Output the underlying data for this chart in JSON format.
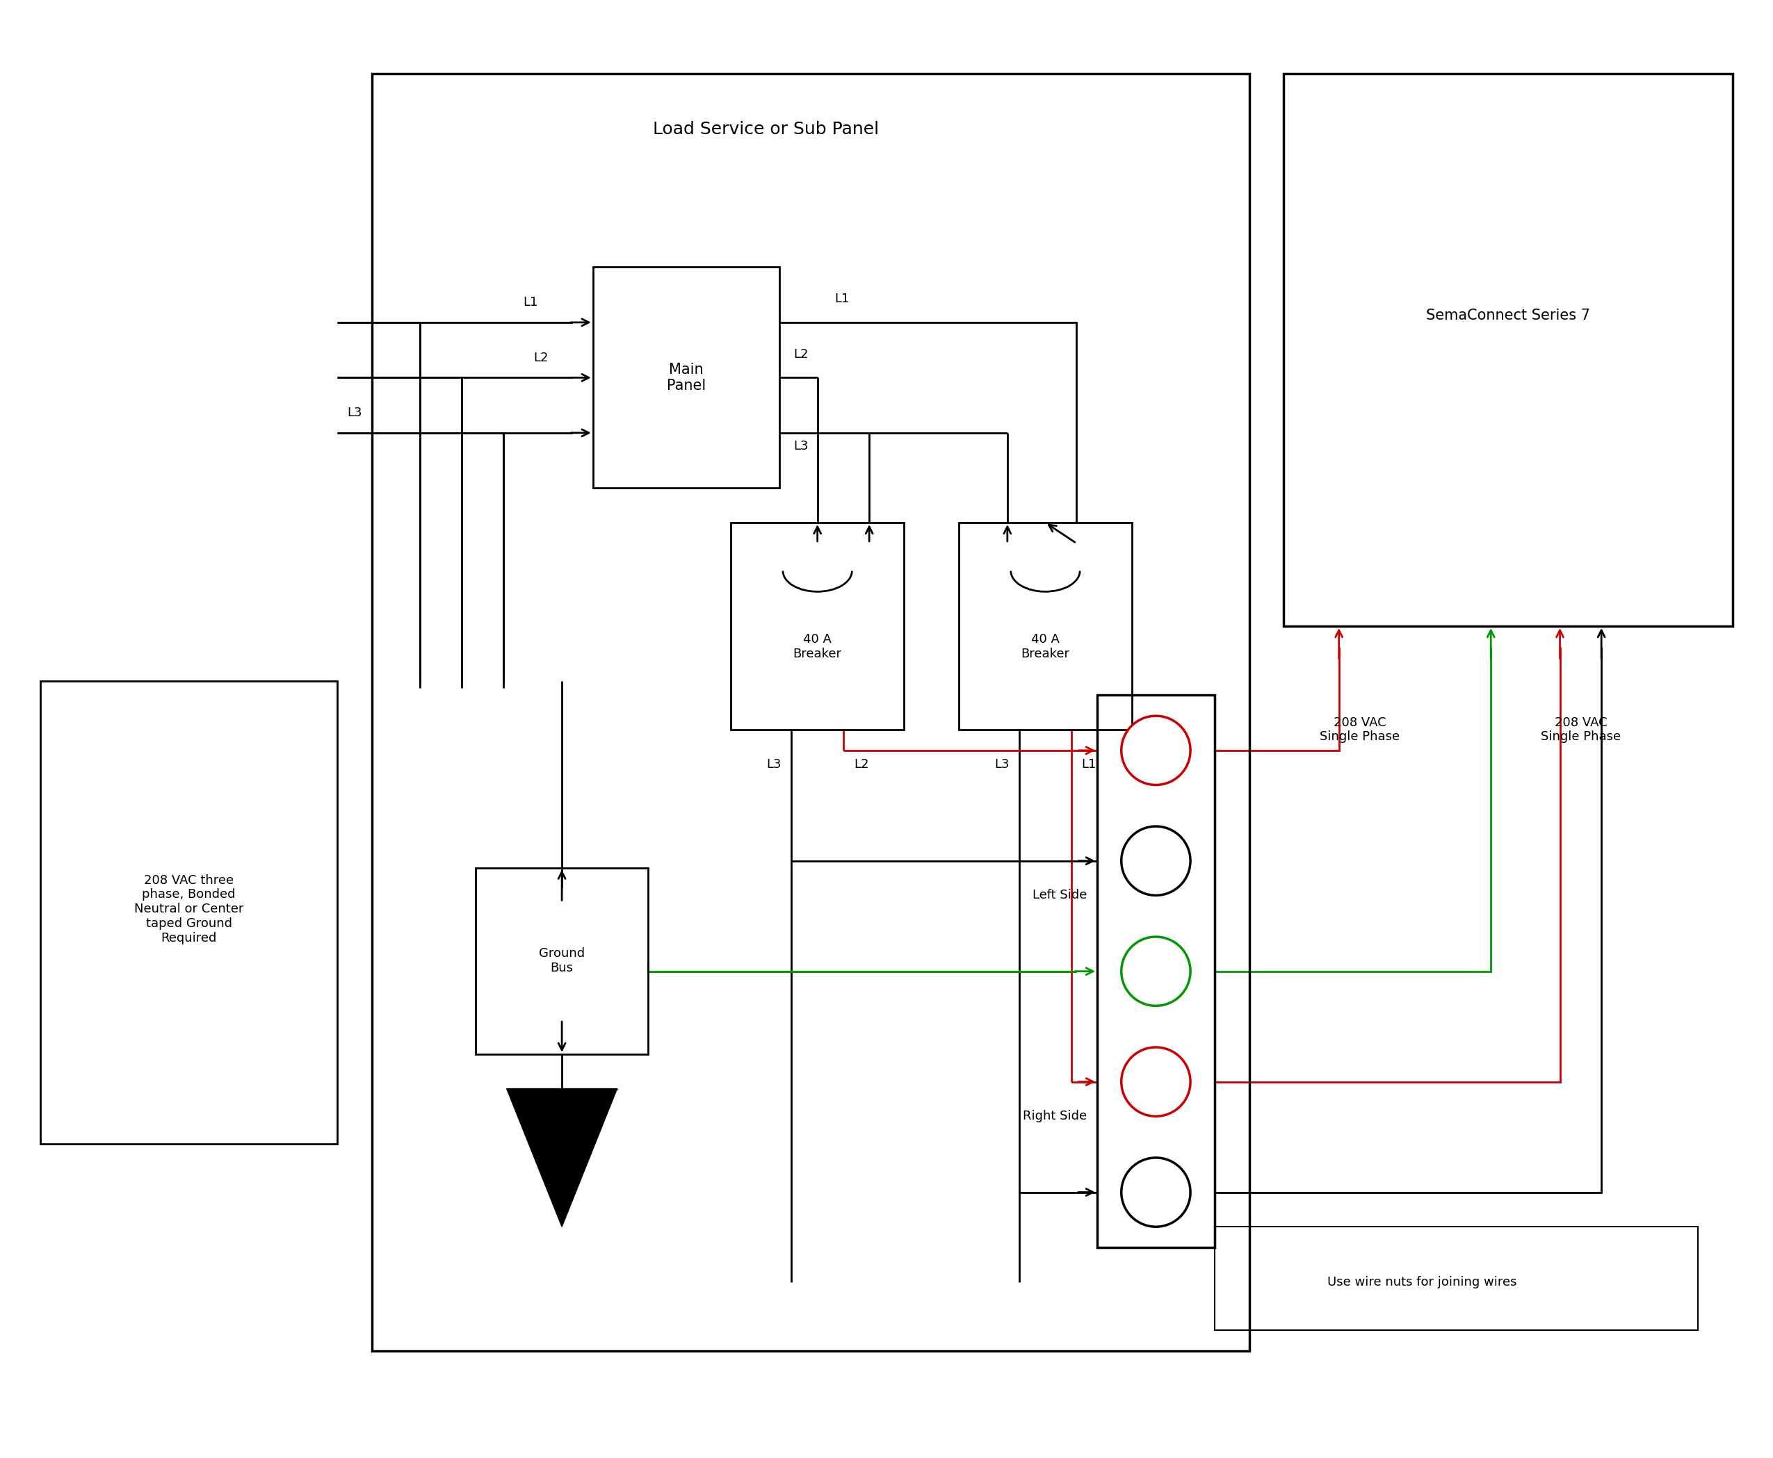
{
  "bg_color": "#ffffff",
  "line_color": "#000000",
  "red_color": "#cc0000",
  "green_color": "#009900",
  "fig_width": 25.5,
  "fig_height": 20.98,
  "load_panel_label": "Load Service or Sub Panel",
  "main_panel_label": "Main\nPanel",
  "breaker1_label": "40 A\nBreaker",
  "breaker2_label": "40 A\nBreaker",
  "ground_bus_label": "Ground\nBus",
  "source_label": "208 VAC three\nphase, Bonded\nNeutral or Center\ntaped Ground\nRequired",
  "sema_label": "SemaConnect Series 7",
  "left_side_label": "Left Side",
  "right_side_label": "Right Side",
  "wire_nuts_label": "Use wire nuts for joining wires",
  "vac_label1": "208 VAC\nSingle Phase",
  "vac_label2": "208 VAC\nSingle Phase",
  "font_size_large": 18,
  "font_size_med": 15,
  "font_size_small": 13,
  "lw_main": 2.0,
  "lw_wire": 2.0
}
